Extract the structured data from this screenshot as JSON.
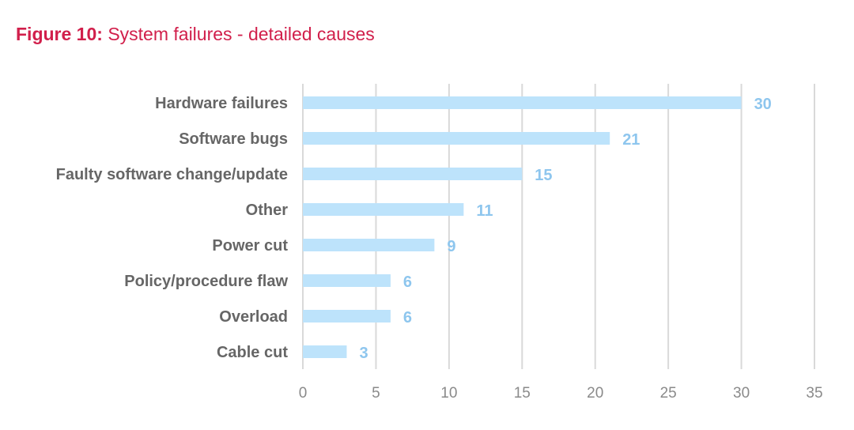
{
  "title": {
    "prefix": "Figure 10:",
    "text": "System failures - detailed causes"
  },
  "chart_data": {
    "type": "bar",
    "orientation": "horizontal",
    "categories": [
      "Hardware failures",
      "Software bugs",
      "Faulty software change/update",
      "Other",
      "Power cut",
      "Policy/procedure flaw",
      "Overload",
      "Cable cut"
    ],
    "values": [
      30,
      21,
      15,
      11,
      9,
      6,
      6,
      3
    ],
    "xlim": [
      0,
      35
    ],
    "xticks": [
      0,
      5,
      10,
      15,
      20,
      25,
      30,
      35
    ],
    "grid": true,
    "legend": "none",
    "colors": {
      "bar": "#bde3fb",
      "value_label": "#8ec6ee",
      "grid": "#d9d9d9",
      "category_label": "#666666",
      "tick_label": "#8a8a8a",
      "title": "#d11f4b"
    }
  }
}
